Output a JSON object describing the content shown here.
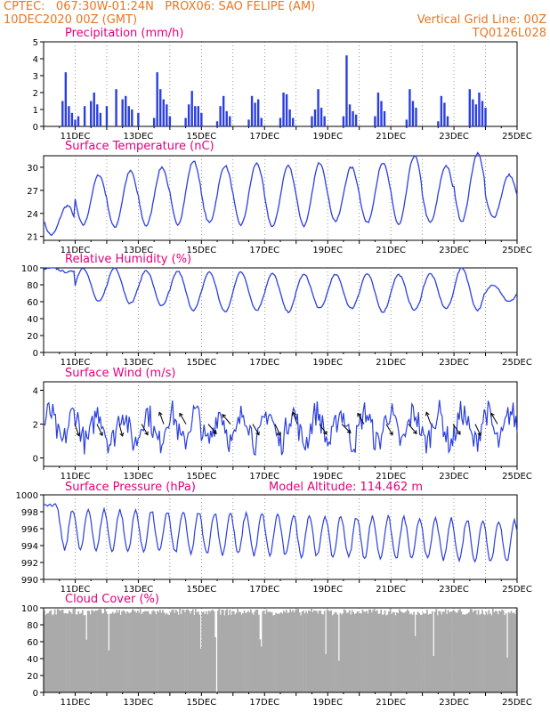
{
  "header": {
    "line1_left": "CPTEC:   067:30W-01:24N   PROX06: SAO FELIPE (AM)",
    "line2_left": "10DEC2020 00Z (GMT)",
    "line2_right": "Vertical Grid Line: 00Z",
    "line3_right": "TQ0126L028"
  },
  "colors": {
    "header": "#e87722",
    "title": "#e4007c",
    "line": "#2b3fe0",
    "bar": "#2b3fe0",
    "cloud": "#aaaaaa"
  },
  "x_ticks": [
    "11DEC",
    "13DEC",
    "15DEC",
    "17DEC",
    "19DEC",
    "21DEC",
    "23DEC",
    "25DEC"
  ],
  "chart_data": [
    {
      "type": "bar",
      "title": "Precipitation (mm/h)",
      "x_range": [
        "10DEC 00Z",
        "25DEC 00Z"
      ],
      "ylim": [
        0,
        5
      ],
      "y_ticks": [
        "0",
        "1",
        "2",
        "3",
        "4",
        "5"
      ],
      "x_days": [
        0.6,
        0.7,
        0.8,
        0.9,
        1.0,
        1.1,
        1.3,
        1.5,
        1.6,
        1.7,
        1.8,
        2.0,
        2.3,
        2.5,
        2.6,
        2.7,
        2.8,
        3.0,
        3.5,
        3.6,
        3.7,
        3.8,
        3.9,
        4.0,
        4.5,
        4.6,
        4.7,
        4.8,
        4.9,
        5.0,
        5.5,
        5.6,
        5.7,
        5.8,
        5.9,
        6.5,
        6.6,
        6.7,
        6.8,
        6.9,
        7.5,
        7.6,
        7.7,
        7.8,
        7.9,
        8.5,
        8.6,
        8.7,
        8.8,
        8.9,
        9.5,
        9.6,
        9.7,
        9.8,
        9.9,
        10.5,
        10.6,
        10.7,
        10.8,
        11.5,
        11.6,
        11.7,
        11.8,
        12.5,
        12.6,
        12.7,
        12.8,
        13.5,
        13.6,
        13.7,
        13.8,
        13.9,
        14.0
      ],
      "values": [
        1.5,
        3.2,
        1.2,
        0.8,
        0.4,
        0.6,
        1.2,
        1.5,
        2.0,
        1.3,
        0.8,
        1.2,
        2.2,
        1.6,
        1.8,
        1.2,
        1.0,
        0.8,
        0.5,
        3.2,
        2.2,
        1.6,
        1.3,
        0.6,
        0.5,
        1.3,
        2.1,
        1.2,
        1.2,
        0.8,
        0.3,
        1.2,
        1.8,
        0.9,
        0.6,
        0.4,
        1.8,
        1.4,
        1.6,
        0.5,
        0.5,
        2.0,
        1.9,
        1.0,
        0.5,
        0.6,
        1.0,
        2.2,
        1.1,
        0.6,
        0.6,
        4.2,
        1.3,
        0.9,
        0.7,
        0.6,
        2.0,
        1.5,
        0.9,
        0.4,
        2.2,
        1.5,
        1.1,
        0.3,
        1.8,
        1.4,
        0.6,
        2.2,
        1.6,
        1.3,
        2.0,
        1.5,
        1.1
      ]
    },
    {
      "type": "line",
      "title": "Surface Temperature (nC)",
      "ylim": [
        20.5,
        31.5
      ],
      "y_ticks": [
        "21",
        "24",
        "27",
        "30"
      ],
      "pattern": {
        "base_min": 22.5,
        "base_max": 29.5,
        "min_hour": 10,
        "max_hour": 18
      },
      "daily_min": [
        21.2,
        22.5,
        22.2,
        22.4,
        22.6,
        22.8,
        22.5,
        22.3,
        22.4,
        23.0,
        22.8,
        22.5,
        22.8,
        23.0,
        23.5
      ],
      "daily_max": [
        25.0,
        29.0,
        29.5,
        30.0,
        30.8,
        30.2,
        30.5,
        30.2,
        30.6,
        30.0,
        30.5,
        31.5,
        30.2,
        31.8,
        29.0
      ]
    },
    {
      "type": "line",
      "title": "Relative Humidity (%)",
      "ylim": [
        0,
        100
      ],
      "y_ticks": [
        "0",
        "20",
        "40",
        "60",
        "80",
        "100"
      ],
      "daily_min": [
        95,
        60,
        58,
        55,
        50,
        48,
        50,
        48,
        52,
        52,
        48,
        50,
        52,
        50,
        60
      ],
      "daily_max": [
        100,
        100,
        100,
        97,
        96,
        95,
        95,
        93,
        92,
        92,
        93,
        92,
        93,
        100,
        80
      ]
    },
    {
      "type": "line",
      "title": "Surface Wind (m/s)",
      "ylim": [
        -0.5,
        4.5
      ],
      "y_ticks": [
        "0",
        "2",
        "4"
      ],
      "arrow_dirs_deg": [
        20,
        25,
        15,
        30,
        200,
        210,
        40,
        220,
        30,
        25,
        200,
        35,
        45,
        210,
        30,
        40,
        200,
        35,
        25,
        210
      ],
      "note": "arrows show wind direction"
    },
    {
      "type": "line",
      "title": "Surface Pressure (hPa)",
      "annotation": "Model Altitude: 114.462 m",
      "ylim": [
        990,
        1000
      ],
      "y_ticks": [
        "990",
        "992",
        "994",
        "996",
        "998",
        "1000"
      ]
    },
    {
      "type": "bar",
      "title": "Cloud Cover (%)",
      "ylim": [
        0,
        100
      ],
      "y_ticks": [
        "0",
        "20",
        "40",
        "60",
        "80",
        "100"
      ],
      "typical_value": 95
    }
  ]
}
